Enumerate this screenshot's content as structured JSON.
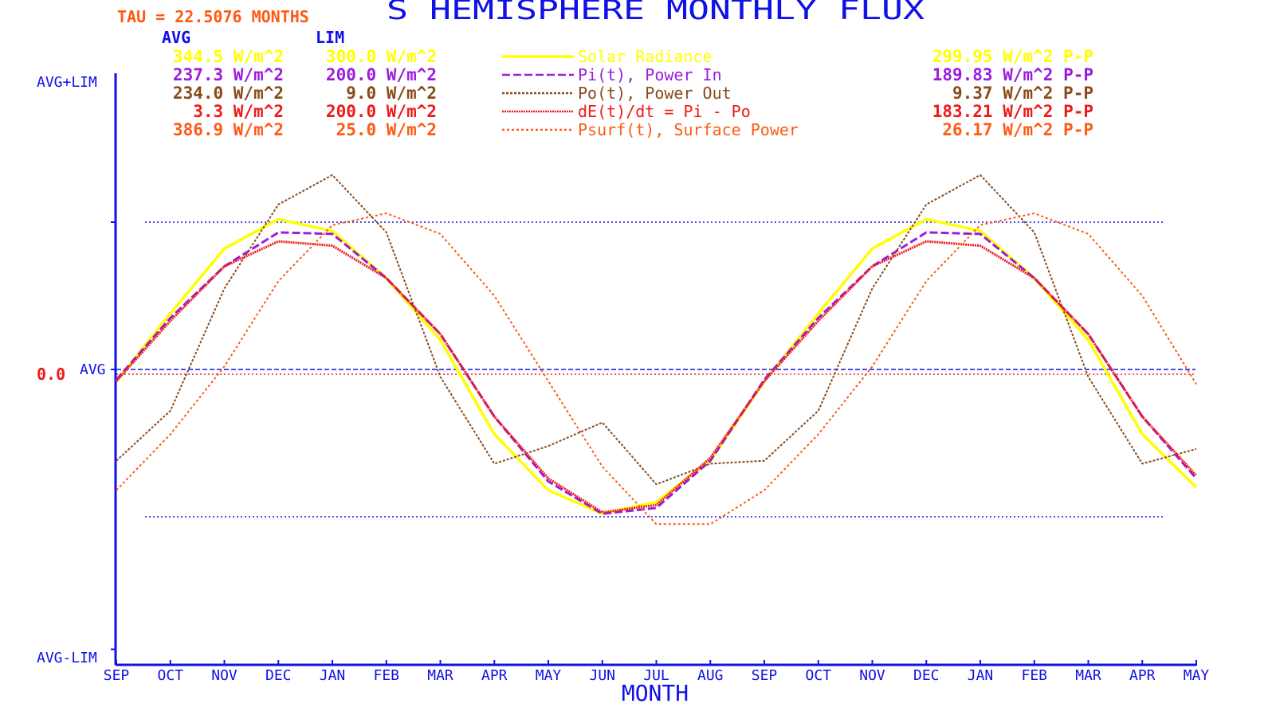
{
  "chart_data": {
    "type": "line",
    "title": "S HEMISPHERE MONTHLY FLUX",
    "tau_label": "TAU = 22.5076 MONTHS",
    "xlabel": "MONTH",
    "x": [
      "SEP",
      "OCT",
      "NOV",
      "DEC",
      "JAN",
      "FEB",
      "MAR",
      "APR",
      "MAY",
      "JUN",
      "JUL",
      "AUG",
      "SEP",
      "OCT",
      "NOV",
      "DEC",
      "JAN",
      "FEB",
      "MAR",
      "APR",
      "MAY"
    ],
    "y_tick_labels": {
      "top": "AVG+LIM",
      "mid": "AVG",
      "bottom": "AVG-LIM"
    },
    "zero_label": "0.0",
    "ylim": [
      -1,
      1
    ],
    "column_headers": {
      "avg": "AVG",
      "lim": "LIM"
    },
    "colors": {
      "axis": "#1010e8",
      "solar": "#ffff00",
      "pin": "#9b1ddc",
      "pout": "#8a4a1a",
      "de": "#ee1a1a",
      "psurf": "#ff5a14"
    },
    "series": [
      {
        "name": "Solar Radiance",
        "avg": "344.5 W/m^2",
        "lim": "300.0 W/m^2",
        "pp": "299.95 W/m^2 P-P",
        "color_key": "solar",
        "dash": "none",
        "values": [
          -0.08,
          0.38,
          0.82,
          1.02,
          0.94,
          0.62,
          0.2,
          -0.44,
          -0.82,
          -0.98,
          -0.9,
          -0.62,
          -0.08,
          0.38,
          0.82,
          1.02,
          0.94,
          0.62,
          0.2,
          -0.44,
          -0.8
        ]
      },
      {
        "name": "Pi(t), Power In",
        "avg": "237.3 W/m^2",
        "lim": "200.0 W/m^2",
        "pp": "189.83 W/m^2 P-P",
        "color_key": "pin",
        "dash": "10 4",
        "values": [
          -0.07,
          0.35,
          0.7,
          0.93,
          0.92,
          0.62,
          0.24,
          -0.32,
          -0.76,
          -0.98,
          -0.94,
          -0.62,
          -0.07,
          0.35,
          0.7,
          0.93,
          0.92,
          0.62,
          0.24,
          -0.32,
          -0.74
        ]
      },
      {
        "name": "Po(t), Power Out",
        "avg": "234.0 W/m^2",
        "lim": "9.0 W/m^2",
        "pp": "9.37 W/m^2 P-P",
        "color_key": "pout",
        "dash": "3 2",
        "values": [
          -0.62,
          -0.28,
          0.55,
          1.12,
          1.32,
          0.93,
          -0.05,
          -0.64,
          -0.52,
          -0.36,
          -0.78,
          -0.64,
          -0.62,
          -0.28,
          0.55,
          1.12,
          1.32,
          0.93,
          -0.05,
          -0.64,
          -0.54
        ]
      },
      {
        "name": "dE(t)/dt = Pi - Po",
        "avg": "3.3 W/m^2",
        "lim": "200.0 W/m^2",
        "pp": "183.21 W/m^2 P-P",
        "color_key": "de",
        "dash": "2 1",
        "values": [
          -0.08,
          0.33,
          0.7,
          0.87,
          0.84,
          0.62,
          0.24,
          -0.32,
          -0.74,
          -0.97,
          -0.92,
          -0.6,
          -0.08,
          0.33,
          0.7,
          0.87,
          0.84,
          0.62,
          0.24,
          -0.32,
          -0.72
        ]
      },
      {
        "name": "Psurf(t), Surface Power",
        "avg": "386.9 W/m^2",
        "lim": "25.0 W/m^2",
        "pp": "26.17 W/m^2 P-P",
        "color_key": "psurf",
        "dash": "3 3",
        "values": [
          -0.82,
          -0.44,
          0.02,
          0.6,
          0.98,
          1.06,
          0.92,
          0.5,
          -0.08,
          -0.66,
          -1.05,
          -1.05,
          -0.82,
          -0.44,
          0.02,
          0.6,
          0.98,
          1.06,
          0.92,
          0.5,
          -0.1
        ]
      }
    ]
  }
}
